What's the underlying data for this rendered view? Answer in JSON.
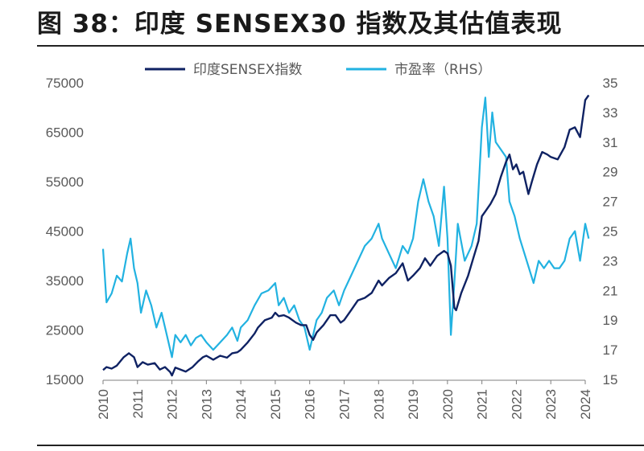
{
  "title": "图 38：印度 SENSEX30 指数及其估值表现",
  "chart_data": {
    "type": "line",
    "title": "图 38：印度 SENSEX30 指数及其估值表现",
    "xlabel": "",
    "ylabel": "",
    "x_ticks": [
      "2010",
      "2011",
      "2012",
      "2013",
      "2014",
      "2015",
      "2016",
      "2017",
      "2018",
      "2019",
      "2020",
      "2021",
      "2022",
      "2023",
      "2024"
    ],
    "y_left": {
      "ticks": [
        "15000",
        "25000",
        "35000",
        "45000",
        "55000",
        "65000",
        "75000"
      ],
      "range": [
        15000,
        75000
      ]
    },
    "y_right": {
      "ticks": [
        "15",
        "17",
        "19",
        "21",
        "23",
        "25",
        "27",
        "29",
        "31",
        "33",
        "35"
      ],
      "range": [
        15,
        35
      ]
    },
    "grid": false,
    "legend_position": "top-center",
    "series": [
      {
        "name": "印度SENSEX指数",
        "axis": "left",
        "color": "#0f2263",
        "x": [
          2010.0,
          2010.1,
          2010.25,
          2010.4,
          2010.6,
          2010.75,
          2010.9,
          2011.0,
          2011.15,
          2011.3,
          2011.5,
          2011.65,
          2011.8,
          2011.95,
          2012.0,
          2012.1,
          2012.25,
          2012.4,
          2012.6,
          2012.75,
          2012.9,
          2013.0,
          2013.2,
          2013.4,
          2013.6,
          2013.75,
          2013.9,
          2014.0,
          2014.2,
          2014.4,
          2014.5,
          2014.7,
          2014.9,
          2015.0,
          2015.1,
          2015.25,
          2015.4,
          2015.6,
          2015.75,
          2015.9,
          2016.0,
          2016.1,
          2016.2,
          2016.4,
          2016.6,
          2016.75,
          2016.9,
          2017.0,
          2017.2,
          2017.4,
          2017.6,
          2017.8,
          2018.0,
          2018.1,
          2018.3,
          2018.5,
          2018.7,
          2018.85,
          2019.0,
          2019.2,
          2019.35,
          2019.5,
          2019.7,
          2019.9,
          2020.0,
          2020.1,
          2020.2,
          2020.25,
          2020.4,
          2020.6,
          2020.75,
          2020.9,
          2021.0,
          2021.1,
          2021.25,
          2021.4,
          2021.55,
          2021.7,
          2021.8,
          2021.9,
          2022.0,
          2022.1,
          2022.2,
          2022.35,
          2022.45,
          2022.6,
          2022.75,
          2022.9,
          2023.0,
          2023.2,
          2023.4,
          2023.55,
          2023.7,
          2023.85,
          2024.0,
          2024.1
        ],
        "y": [
          16900,
          17500,
          17200,
          17800,
          19500,
          20300,
          19500,
          17500,
          18500,
          18000,
          18300,
          17000,
          17500,
          16500,
          15800,
          17400,
          17000,
          16600,
          17500,
          18600,
          19500,
          19800,
          19000,
          19800,
          19400,
          20300,
          20500,
          21000,
          22500,
          24300,
          25500,
          27000,
          27500,
          28500,
          27800,
          28000,
          27500,
          26500,
          26000,
          26000,
          24000,
          23000,
          24500,
          26000,
          28000,
          28000,
          26500,
          27000,
          29000,
          31000,
          31500,
          32500,
          35000,
          34000,
          35500,
          36500,
          38500,
          35000,
          36000,
          37500,
          39500,
          38000,
          40000,
          41000,
          40500,
          38000,
          29500,
          29000,
          32500,
          36000,
          39500,
          43000,
          48000,
          49000,
          50500,
          52500,
          56000,
          59000,
          60500,
          57500,
          58500,
          56500,
          57000,
          52500,
          55000,
          58500,
          61000,
          60500,
          60000,
          59500,
          62000,
          65500,
          66000,
          64000,
          71500,
          72500
        ]
      },
      {
        "name": "市盈率（RHS）",
        "axis": "right",
        "color": "#22b2e1",
        "x": [
          2010.0,
          2010.1,
          2010.25,
          2010.4,
          2010.55,
          2010.7,
          2010.8,
          2010.9,
          2011.0,
          2011.1,
          2011.25,
          2011.4,
          2011.55,
          2011.7,
          2011.85,
          2012.0,
          2012.1,
          2012.25,
          2012.4,
          2012.55,
          2012.7,
          2012.85,
          2013.0,
          2013.2,
          2013.4,
          2013.6,
          2013.75,
          2013.9,
          2014.0,
          2014.2,
          2014.4,
          2014.6,
          2014.8,
          2015.0,
          2015.1,
          2015.25,
          2015.4,
          2015.55,
          2015.7,
          2015.85,
          2016.0,
          2016.1,
          2016.2,
          2016.35,
          2016.5,
          2016.7,
          2016.85,
          2017.0,
          2017.2,
          2017.4,
          2017.6,
          2017.8,
          2018.0,
          2018.1,
          2018.3,
          2018.5,
          2018.7,
          2018.85,
          2019.0,
          2019.15,
          2019.3,
          2019.45,
          2019.6,
          2019.75,
          2019.9,
          2020.0,
          2020.1,
          2020.2,
          2020.3,
          2020.5,
          2020.7,
          2020.85,
          2021.0,
          2021.1,
          2021.2,
          2021.3,
          2021.4,
          2021.55,
          2021.7,
          2021.8,
          2021.95,
          2022.1,
          2022.3,
          2022.5,
          2022.65,
          2022.8,
          2022.95,
          2023.1,
          2023.25,
          2023.4,
          2023.55,
          2023.7,
          2023.85,
          2024.0,
          2024.1
        ],
        "y": [
          23.8,
          20.2,
          20.8,
          22.0,
          21.6,
          23.5,
          24.5,
          22.5,
          21.5,
          19.5,
          21.0,
          20.0,
          18.5,
          19.5,
          18.0,
          16.5,
          18.0,
          17.5,
          18.0,
          17.3,
          17.8,
          18.0,
          17.5,
          17.0,
          17.5,
          18.0,
          18.5,
          17.6,
          18.5,
          19.0,
          20.0,
          20.8,
          21.0,
          21.5,
          20.0,
          20.5,
          19.5,
          20.0,
          19.0,
          18.5,
          17.0,
          18.0,
          19.0,
          19.5,
          20.5,
          21.0,
          20.0,
          21.0,
          22.0,
          23.0,
          24.0,
          24.5,
          25.5,
          24.5,
          23.5,
          22.5,
          24.0,
          23.5,
          24.5,
          27.0,
          28.5,
          27.0,
          26.0,
          24.0,
          28.0,
          24.5,
          18.0,
          21.5,
          25.5,
          23.0,
          24.0,
          25.5,
          32.0,
          34.0,
          30.0,
          33.0,
          31.0,
          30.5,
          30.0,
          27.0,
          26.0,
          24.5,
          23.0,
          21.5,
          23.0,
          22.5,
          23.0,
          22.5,
          22.5,
          23.0,
          24.5,
          25.0,
          23.0,
          25.5,
          24.5
        ]
      }
    ]
  }
}
